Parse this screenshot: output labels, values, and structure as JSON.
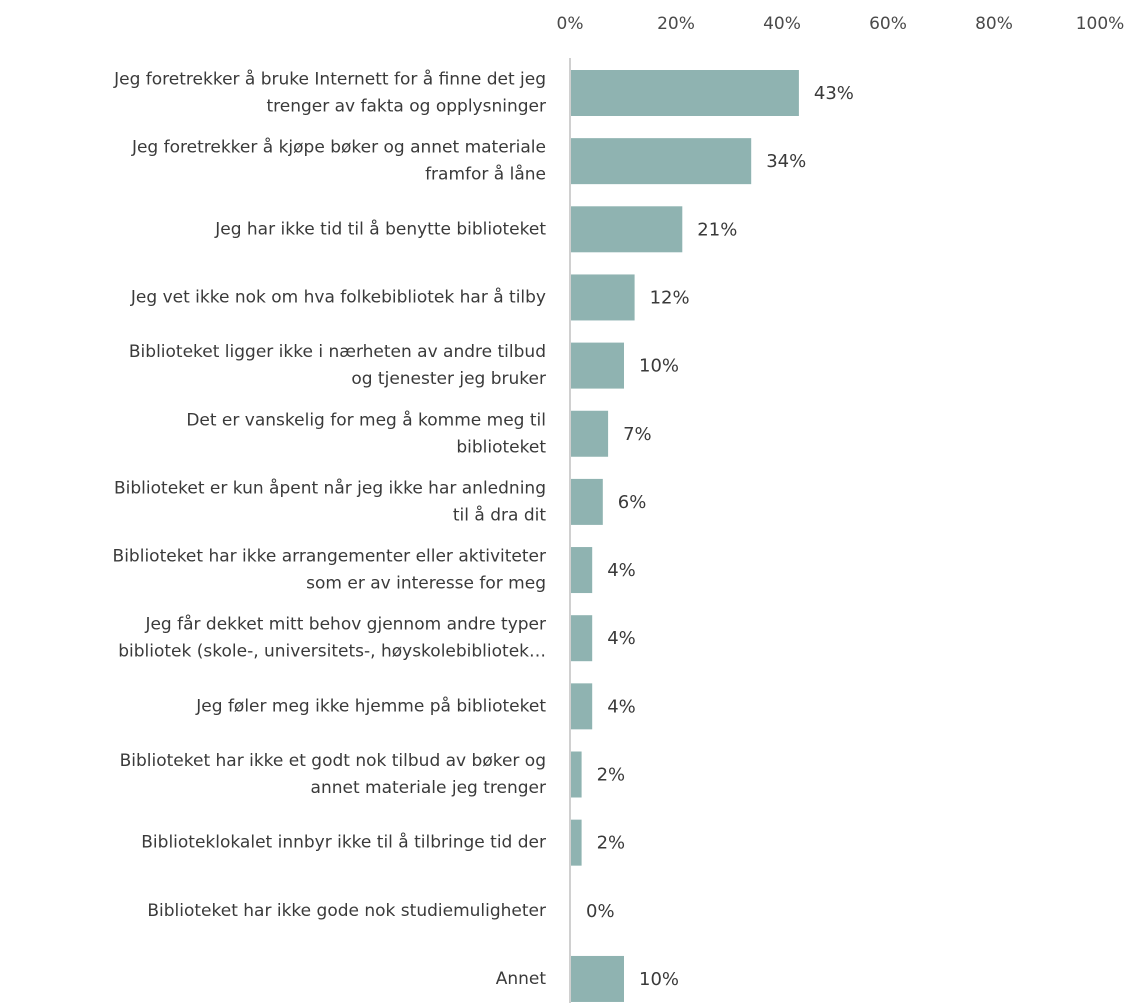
{
  "chart_data": {
    "type": "bar",
    "orientation": "horizontal",
    "title": "",
    "xlabel": "",
    "ylabel": "",
    "xlim": [
      0,
      100
    ],
    "x_ticks": [
      "0%",
      "20%",
      "40%",
      "60%",
      "80%",
      "100%"
    ],
    "x_tick_values": [
      0,
      20,
      40,
      60,
      80,
      100
    ],
    "axis_position": "top",
    "grid": false,
    "legend": "none",
    "bar_color": "#8fb3b1",
    "axis_line_color": "#d0d0d0",
    "categories": [
      [
        "Jeg foretrekker å bruke Internett for å finne det jeg",
        "trenger av fakta og opplysninger"
      ],
      [
        "Jeg foretrekker å kjøpe bøker og annet materiale",
        "framfor å låne"
      ],
      [
        "Jeg har ikke tid til å benytte biblioteket"
      ],
      [
        "Jeg vet ikke nok om hva folkebibliotek har å tilby"
      ],
      [
        "Biblioteket ligger ikke i nærheten av andre tilbud",
        "og tjenester jeg bruker"
      ],
      [
        "Det er vanskelig for meg å komme meg til",
        "biblioteket"
      ],
      [
        "Biblioteket er kun åpent når jeg ikke har anledning",
        "til å dra dit"
      ],
      [
        "Biblioteket har ikke arrangementer eller aktiviteter",
        "som er av interesse for meg"
      ],
      [
        "Jeg får dekket mitt behov gjennom andre typer",
        "bibliotek (skole-, universitets-, høyskolebibliotek…"
      ],
      [
        "Jeg føler meg ikke hjemme på biblioteket"
      ],
      [
        "Biblioteket har ikke et godt nok tilbud av bøker og",
        "annet materiale jeg trenger"
      ],
      [
        "Biblioteklokalet innbyr ikke til å tilbringe tid der"
      ],
      [
        "Biblioteket har ikke gode nok studiemuligheter"
      ],
      [
        "Annet"
      ]
    ],
    "values": [
      43,
      34,
      21,
      12,
      10,
      7,
      6,
      4,
      4,
      4,
      2,
      2,
      0,
      10
    ],
    "data_labels": [
      "43%",
      "34%",
      "21%",
      "12%",
      "10%",
      "7%",
      "6%",
      "4%",
      "4%",
      "4%",
      "2%",
      "2%",
      "0%",
      "10%"
    ]
  }
}
